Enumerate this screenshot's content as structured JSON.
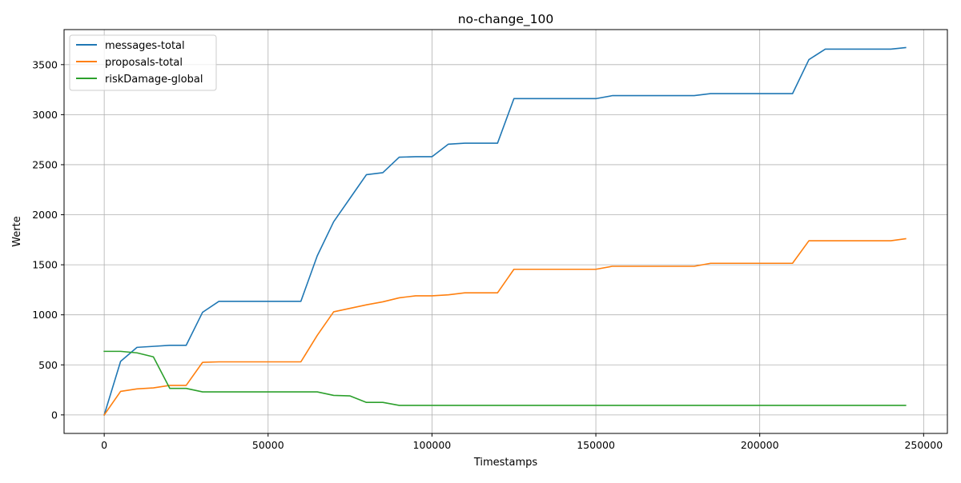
{
  "chart_data": {
    "type": "line",
    "title": "no-change_100",
    "xlabel": "Timestamps",
    "ylabel": "Werte",
    "xlim": [
      -12250,
      257250
    ],
    "ylim": [
      -185,
      3850
    ],
    "x_ticks": [
      0,
      50000,
      100000,
      150000,
      200000,
      250000
    ],
    "y_ticks": [
      0,
      500,
      1000,
      1500,
      2000,
      2500,
      3000,
      3500
    ],
    "x_tick_labels": [
      "0",
      "50000",
      "100000",
      "150000",
      "200000",
      "250000"
    ],
    "y_tick_labels": [
      "0",
      "500",
      "1000",
      "1500",
      "2000",
      "2500",
      "3000",
      "3500"
    ],
    "grid": true,
    "legend_position": "upper left",
    "x": [
      0,
      5000,
      10000,
      15000,
      20000,
      25000,
      30000,
      35000,
      40000,
      45000,
      50000,
      55000,
      60000,
      65000,
      70000,
      75000,
      80000,
      85000,
      90000,
      95000,
      100000,
      105000,
      110000,
      115000,
      120000,
      125000,
      130000,
      135000,
      140000,
      145000,
      150000,
      155000,
      160000,
      165000,
      170000,
      175000,
      180000,
      185000,
      190000,
      195000,
      200000,
      205000,
      210000,
      215000,
      220000,
      225000,
      230000,
      235000,
      240000,
      244500
    ],
    "series": [
      {
        "name": "messages-total",
        "color": "#1f77b4",
        "values": [
          0,
          535,
          675,
          685,
          695,
          695,
          1025,
          1135,
          1135,
          1135,
          1135,
          1135,
          1135,
          1590,
          1930,
          2165,
          2400,
          2420,
          2575,
          2580,
          2580,
          2705,
          2715,
          2715,
          2715,
          3160,
          3160,
          3160,
          3160,
          3160,
          3160,
          3190,
          3190,
          3190,
          3190,
          3190,
          3190,
          3210,
          3210,
          3210,
          3210,
          3210,
          3210,
          3550,
          3655,
          3655,
          3655,
          3655,
          3655,
          3670
        ]
      },
      {
        "name": "proposals-total",
        "color": "#ff7f0e",
        "values": [
          0,
          235,
          260,
          270,
          295,
          295,
          525,
          530,
          530,
          530,
          530,
          530,
          530,
          795,
          1030,
          1065,
          1100,
          1130,
          1170,
          1190,
          1190,
          1200,
          1220,
          1220,
          1220,
          1455,
          1455,
          1455,
          1455,
          1455,
          1455,
          1485,
          1485,
          1485,
          1485,
          1485,
          1485,
          1515,
          1515,
          1515,
          1515,
          1515,
          1515,
          1740,
          1740,
          1740,
          1740,
          1740,
          1740,
          1760
        ]
      },
      {
        "name": "riskDamage-global",
        "color": "#2ca02c",
        "values": [
          635,
          635,
          620,
          580,
          265,
          265,
          230,
          230,
          230,
          230,
          230,
          230,
          230,
          230,
          195,
          190,
          125,
          125,
          95,
          95,
          95,
          95,
          95,
          95,
          95,
          95,
          95,
          95,
          95,
          95,
          95,
          95,
          95,
          95,
          95,
          95,
          95,
          95,
          95,
          95,
          95,
          95,
          95,
          95,
          95,
          95,
          95,
          95,
          95,
          95
        ]
      }
    ]
  }
}
